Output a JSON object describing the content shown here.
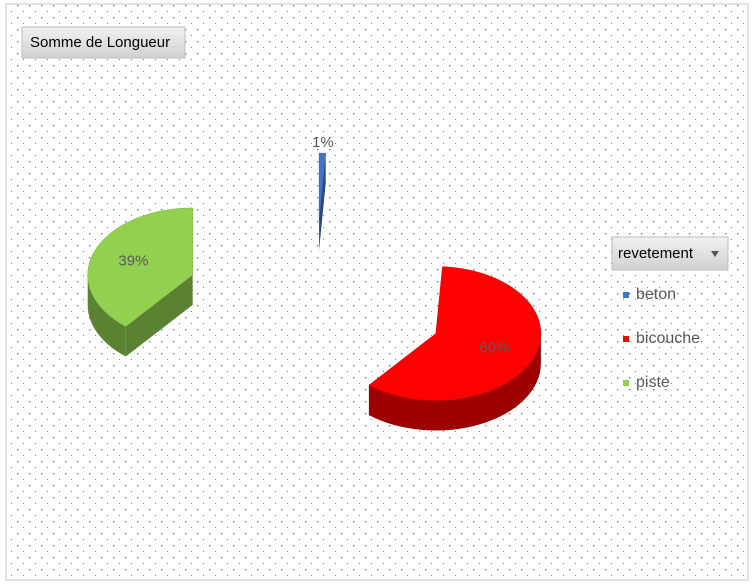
{
  "chart_data": {
    "type": "pie",
    "field_button": "Somme de Longueur",
    "legend_title": "revetement",
    "categories": [
      "beton",
      "bicouche",
      "piste"
    ],
    "values": [
      1,
      60,
      39
    ],
    "value_labels": [
      "1%",
      "60%",
      "39%"
    ],
    "colors": [
      "#4472c4",
      "#ff0000",
      "#92d050"
    ],
    "legend": "right"
  }
}
